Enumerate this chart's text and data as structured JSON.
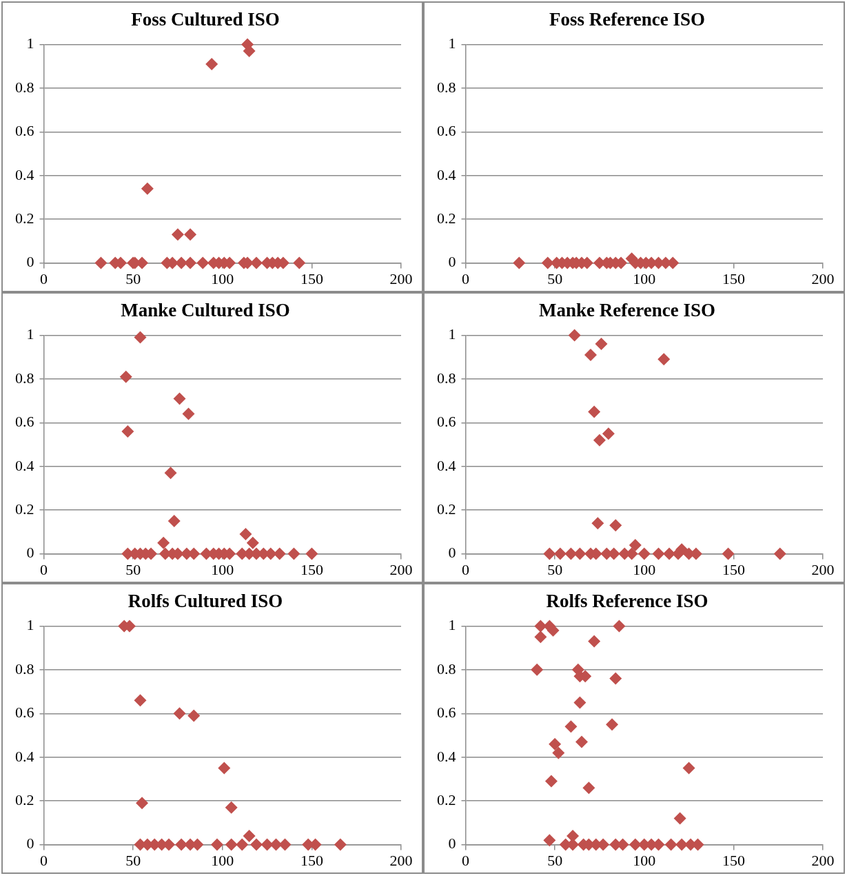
{
  "chart_data": [
    {
      "type": "scatter",
      "title": "Foss Cultured ISO",
      "color": "#c0504d",
      "marker": "diamond",
      "grid": "y",
      "xlim": [
        0,
        200
      ],
      "xticks": [
        0,
        50,
        100,
        150,
        200
      ],
      "ylim": [
        0,
        1
      ],
      "yticks": [
        0,
        0.2,
        0.4,
        0.6,
        0.8,
        1
      ],
      "x": [
        114,
        115,
        94,
        58,
        75,
        82,
        32,
        40,
        43,
        50,
        51,
        55,
        69,
        72,
        77,
        82,
        89,
        95,
        98,
        101,
        104,
        112,
        114,
        119,
        125,
        128,
        131,
        134,
        143
      ],
      "values": [
        1.0,
        0.97,
        0.91,
        0.34,
        0.13,
        0.13,
        0,
        0,
        0,
        0,
        0,
        0,
        0,
        0,
        0,
        0,
        0,
        0,
        0,
        0,
        0,
        0,
        0,
        0,
        0,
        0,
        0,
        0,
        0
      ]
    },
    {
      "type": "scatter",
      "title": "Foss Reference ISO",
      "color": "#c0504d",
      "marker": "diamond",
      "grid": "y",
      "xlim": [
        0,
        200
      ],
      "xticks": [
        0,
        50,
        100,
        150,
        200
      ],
      "ylim": [
        0,
        1
      ],
      "yticks": [
        0,
        0.2,
        0.4,
        0.6,
        0.8,
        1
      ],
      "x": [
        30,
        46,
        51,
        54,
        57,
        60,
        62,
        65,
        68,
        75,
        79,
        81,
        84,
        87,
        93,
        95,
        98,
        101,
        104,
        108,
        112,
        116
      ],
      "values": [
        0,
        0,
        0,
        0,
        0,
        0,
        0,
        0,
        0,
        0,
        0,
        0,
        0,
        0,
        0.02,
        0,
        0,
        0,
        0,
        0,
        0,
        0
      ]
    },
    {
      "type": "scatter",
      "title": "Manke Cultured ISO",
      "color": "#c0504d",
      "marker": "diamond",
      "grid": "y",
      "xlim": [
        0,
        200
      ],
      "xticks": [
        0,
        50,
        100,
        150,
        200
      ],
      "ylim": [
        0,
        1
      ],
      "yticks": [
        0,
        0.2,
        0.4,
        0.6,
        0.8,
        1
      ],
      "x": [
        54,
        46,
        76,
        81,
        47,
        71,
        73,
        67,
        113,
        117,
        47,
        51,
        54,
        57,
        60,
        68,
        72,
        75,
        80,
        84,
        91,
        95,
        98,
        101,
        104,
        111,
        115,
        119,
        123,
        127,
        132,
        140,
        150
      ],
      "values": [
        0.99,
        0.81,
        0.71,
        0.64,
        0.56,
        0.37,
        0.15,
        0.05,
        0.09,
        0.05,
        0,
        0,
        0,
        0,
        0,
        0,
        0,
        0,
        0,
        0,
        0,
        0,
        0,
        0,
        0,
        0,
        0,
        0,
        0,
        0,
        0,
        0,
        0
      ]
    },
    {
      "type": "scatter",
      "title": "Manke Reference ISO",
      "color": "#c0504d",
      "marker": "diamond",
      "grid": "y",
      "xlim": [
        0,
        200
      ],
      "xticks": [
        0,
        50,
        100,
        150,
        200
      ],
      "ylim": [
        0,
        1
      ],
      "yticks": [
        0,
        0.2,
        0.4,
        0.6,
        0.8,
        1
      ],
      "x": [
        61,
        76,
        70,
        111,
        72,
        80,
        75,
        74,
        84,
        95,
        121,
        47,
        53,
        59,
        64,
        70,
        73,
        79,
        83,
        89,
        93,
        100,
        108,
        114,
        119,
        125,
        129,
        147,
        176
      ],
      "values": [
        1.0,
        0.96,
        0.91,
        0.89,
        0.65,
        0.55,
        0.52,
        0.14,
        0.13,
        0.04,
        0.02,
        0,
        0,
        0,
        0,
        0,
        0,
        0,
        0,
        0,
        0,
        0,
        0,
        0,
        0,
        0,
        0,
        0,
        0
      ]
    },
    {
      "type": "scatter",
      "title": "Rolfs Cultured ISO",
      "color": "#c0504d",
      "marker": "diamond",
      "grid": "y",
      "xlim": [
        0,
        200
      ],
      "xticks": [
        0,
        50,
        100,
        150,
        200
      ],
      "ylim": [
        0,
        1
      ],
      "yticks": [
        0,
        0.2,
        0.4,
        0.6,
        0.8,
        1
      ],
      "x": [
        45,
        48,
        54,
        76,
        84,
        101,
        55,
        105,
        115,
        54,
        58,
        62,
        66,
        70,
        77,
        82,
        86,
        97,
        105,
        111,
        119,
        125,
        130,
        135,
        148,
        152,
        166
      ],
      "values": [
        1.0,
        1.0,
        0.66,
        0.6,
        0.59,
        0.35,
        0.19,
        0.17,
        0.04,
        0,
        0,
        0,
        0,
        0,
        0,
        0,
        0,
        0,
        0,
        0,
        0,
        0,
        0,
        0,
        0,
        0,
        0
      ]
    },
    {
      "type": "scatter",
      "title": "Rolfs Reference ISO",
      "color": "#c0504d",
      "marker": "diamond",
      "grid": "y",
      "xlim": [
        0,
        200
      ],
      "xticks": [
        0,
        50,
        100,
        150,
        200
      ],
      "ylim": [
        0,
        1
      ],
      "yticks": [
        0,
        0.2,
        0.4,
        0.6,
        0.8,
        1
      ],
      "x": [
        42,
        47,
        49,
        86,
        42,
        72,
        40,
        63,
        64,
        67,
        84,
        64,
        59,
        82,
        65,
        50,
        52,
        125,
        48,
        69,
        120,
        47,
        60,
        56,
        60,
        66,
        69,
        73,
        77,
        84,
        88,
        95,
        100,
        104,
        108,
        115,
        121,
        126,
        130
      ],
      "values": [
        1.0,
        1.0,
        0.98,
        1.0,
        0.95,
        0.93,
        0.8,
        0.8,
        0.77,
        0.77,
        0.76,
        0.65,
        0.54,
        0.55,
        0.47,
        0.46,
        0.42,
        0.35,
        0.29,
        0.26,
        0.12,
        0.02,
        0.04,
        0,
        0,
        0,
        0,
        0,
        0,
        0,
        0,
        0,
        0,
        0,
        0,
        0,
        0,
        0,
        0
      ]
    }
  ]
}
